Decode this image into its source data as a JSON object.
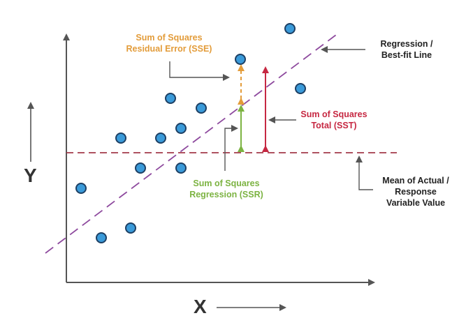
{
  "colors": {
    "axis": "#555555",
    "point_fill": "#3a9ad9",
    "point_stroke": "#1d3f63",
    "regression_line": "#8e4a9e",
    "mean_line": "#a33a4a",
    "sse": "#e39c3a",
    "ssr": "#7cb342",
    "sst": "#c62842",
    "callout": "#555555"
  },
  "axes": {
    "x_label": "X",
    "y_label": "Y"
  },
  "labels": {
    "sse": {
      "line1": "Sum of Squares",
      "line2": "Residual Error (SSE)"
    },
    "ssr": {
      "line1": "Sum of Squares",
      "line2": "Regression (SSR)"
    },
    "sst": {
      "line1": "Sum of Squares",
      "line2": "Total (SST)"
    },
    "regression": {
      "line1": "Regression /",
      "line2": "Best-fit Line"
    },
    "mean": {
      "line1": "Mean of Actual /",
      "line2": "Response",
      "line3": "Variable Value"
    }
  },
  "icons": [
    "arrow-right-icon",
    "arrow-up-icon"
  ]
}
